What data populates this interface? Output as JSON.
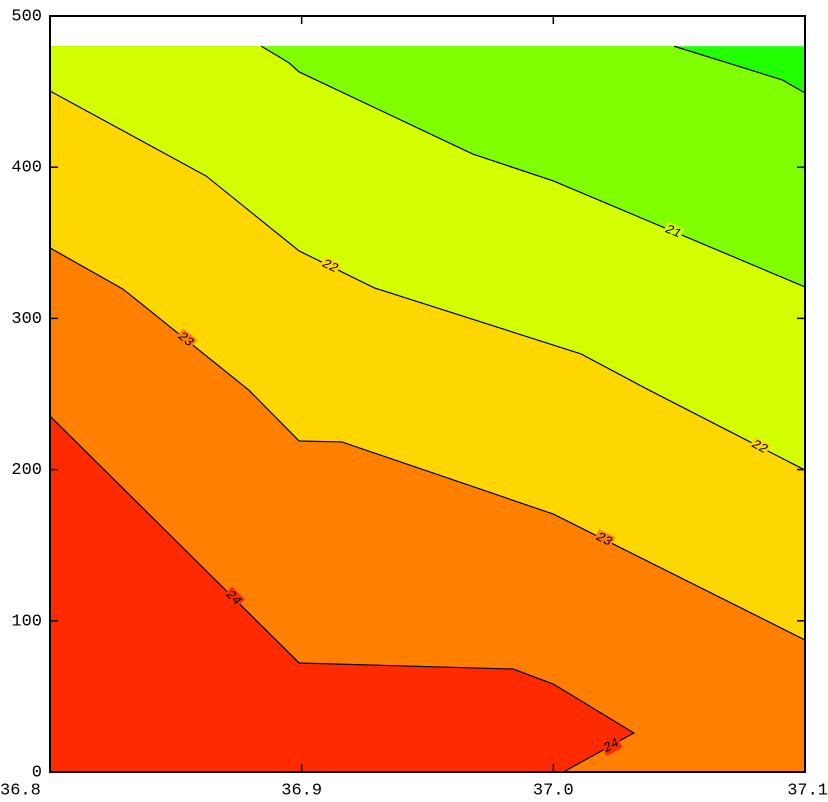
{
  "chart_data": {
    "type": "contour",
    "xlim": [
      36.8,
      37.1
    ],
    "ylim": [
      0,
      500
    ],
    "xticks": [
      36.8,
      36.9,
      {
        "value": 37,
        "label": "37.0"
      },
      37.1
    ],
    "yticks": [
      0,
      100,
      200,
      300,
      400,
      500
    ],
    "base_color": "#22ff00",
    "contours": [
      {
        "fill": "#80ff00",
        "x": [
          37.048,
          37.091,
          37.1
        ],
        "y": [
          480,
          457.7,
          449.1
        ]
      },
      {
        "level": 21,
        "fill": "#d4ff00",
        "x": [
          36.884,
          36.895,
          36.899,
          36.968,
          37.0,
          37.1
        ],
        "y": [
          480,
          469,
          463,
          408.7,
          390.9,
          320.8
        ]
      },
      {
        "level": 22,
        "fill": "#ffd700",
        "x": [
          36.8,
          36.862,
          36.899,
          36.929,
          37.011,
          37.038,
          37.1
        ],
        "y": [
          450.4,
          394.2,
          344.6,
          320.1,
          276.5,
          252.6,
          199.7
        ]
      },
      {
        "level": 23,
        "fill": "#ff8000",
        "x": [
          36.8,
          36.829,
          36.879,
          36.899,
          36.916,
          37.0,
          37.1
        ],
        "y": [
          346.6,
          319.4,
          252.6,
          218.9,
          218.3,
          170.6,
          87.3
        ]
      },
      {
        "level": 24,
        "fill": "#ff2a00",
        "x": [
          36.8,
          36.899,
          36.984,
          37.0,
          37.032,
          37.004
        ],
        "y": [
          235.4,
          72.1,
          68.1,
          58.2,
          25.8,
          0
        ]
      }
    ]
  }
}
